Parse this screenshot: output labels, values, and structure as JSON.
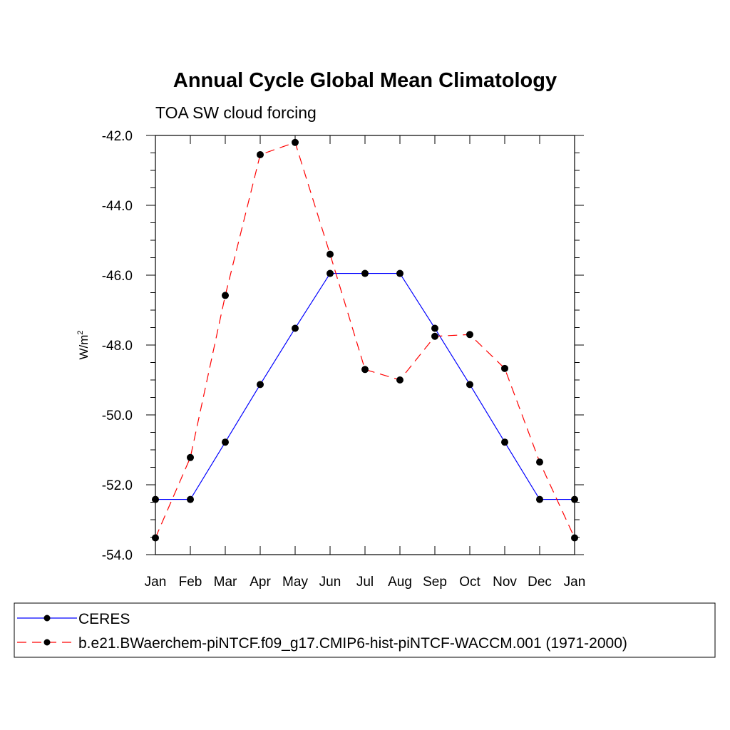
{
  "chart_data": {
    "type": "line",
    "title": "Annual Cycle Global Mean Climatology",
    "subtitle": "TOA SW cloud forcing",
    "xlabel": "",
    "ylabel": "W/m",
    "ylabel_superscript": "2",
    "categories": [
      "Jan",
      "Feb",
      "Mar",
      "Apr",
      "May",
      "Jun",
      "Jul",
      "Aug",
      "Sep",
      "Oct",
      "Nov",
      "Dec",
      "Jan"
    ],
    "ylim": [
      -54.0,
      -42.0
    ],
    "yticks": [
      -54.0,
      -52.0,
      -50.0,
      -48.0,
      -46.0,
      -44.0,
      -42.0
    ],
    "ytick_labels": [
      "-54.0",
      "-52.0",
      "-50.0",
      "-48.0",
      "-46.0",
      "-44.0",
      "-42.0"
    ],
    "grid": false,
    "legend_position": "bottom",
    "series": [
      {
        "name": "CERES",
        "color": "#0000ff",
        "dash": "solid",
        "marker": "filled-circle",
        "values": [
          -52.42,
          -52.42,
          -50.78,
          -49.13,
          -47.52,
          -45.95,
          -45.95,
          -45.95,
          -47.52,
          -49.13,
          -50.78,
          -52.42,
          -52.42
        ]
      },
      {
        "name": "b.e21.BWaerchem-piNTCF.f09_g17.CMIP6-hist-piNTCF-WACCM.001 (1971-2000)",
        "color": "#ff0000",
        "dash": "dashed",
        "marker": "filled-circle",
        "values": [
          -53.52,
          -51.22,
          -46.58,
          -42.55,
          -42.2,
          -45.4,
          -48.7,
          -49.0,
          -47.75,
          -47.7,
          -48.67,
          -51.35,
          -53.52
        ]
      }
    ]
  }
}
